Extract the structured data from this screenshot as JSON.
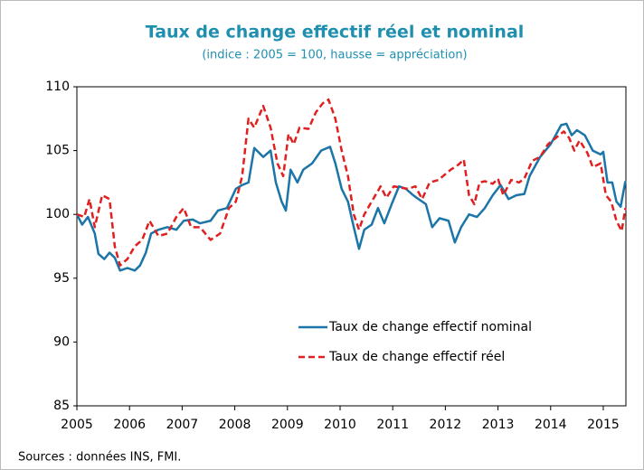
{
  "chart_data": {
    "type": "line",
    "title": "Taux de change effectif réel et nominal",
    "subtitle": "(indice : 2005 = 100, hausse = appréciation)",
    "source": "Sources : données INS, FMI.",
    "xlim": [
      2005,
      2015.43
    ],
    "xticks": [
      2005,
      2006,
      2007,
      2008,
      2009,
      2010,
      2011,
      2012,
      2013,
      2014,
      2015
    ],
    "ylim": [
      85,
      110
    ],
    "yticks": [
      85,
      90,
      95,
      100,
      105,
      110
    ],
    "grid": false,
    "legend": "bottom",
    "series": [
      {
        "name": "Taux de change effectif nominal",
        "color": "#1b75a8",
        "dash": false,
        "x": [
          2005.0,
          2005.1,
          2005.21,
          2005.34,
          2005.41,
          2005.52,
          2005.62,
          2005.72,
          2005.82,
          2005.96,
          2006.1,
          2006.2,
          2006.31,
          2006.41,
          2006.55,
          2006.72,
          2006.89,
          2007.03,
          2007.2,
          2007.34,
          2007.54,
          2007.68,
          2007.85,
          2008.02,
          2008.14,
          2008.26,
          2008.37,
          2008.54,
          2008.68,
          2008.78,
          2008.89,
          2008.97,
          2009.06,
          2009.19,
          2009.3,
          2009.47,
          2009.64,
          2009.81,
          2009.91,
          2010.03,
          2010.15,
          2010.26,
          2010.36,
          2010.46,
          2010.6,
          2010.72,
          2010.84,
          2010.98,
          2011.12,
          2011.25,
          2011.39,
          2011.49,
          2011.63,
          2011.75,
          2011.89,
          2012.06,
          2012.18,
          2012.3,
          2012.45,
          2012.6,
          2012.75,
          2012.9,
          2013.05,
          2013.2,
          2013.35,
          2013.5,
          2013.6,
          2013.8,
          2014.0,
          2014.2,
          2014.3,
          2014.4,
          2014.5,
          2014.65,
          2014.8,
          2014.95,
          2015.0,
          2015.08,
          2015.17,
          2015.25,
          2015.33,
          2015.42
        ],
        "values": [
          100,
          99.2,
          99.8,
          98.5,
          96.9,
          96.5,
          97,
          96.6,
          95.6,
          95.8,
          95.6,
          96,
          97,
          98.5,
          98.8,
          99,
          98.8,
          99.5,
          99.6,
          99.3,
          99.5,
          100.3,
          100.5,
          102,
          102.3,
          102.5,
          105.2,
          104.5,
          105,
          102.5,
          101,
          100.3,
          103.5,
          102.5,
          103.5,
          104,
          105,
          105.3,
          104,
          102,
          101,
          99,
          97.3,
          98.8,
          99.2,
          100.5,
          99.3,
          100.8,
          102.2,
          102,
          101.5,
          101.2,
          100.8,
          99,
          99.7,
          99.5,
          97.8,
          99,
          100,
          99.8,
          100.5,
          101.5,
          102.3,
          101.2,
          101.5,
          101.6,
          103,
          104.5,
          105.5,
          107,
          107.1,
          106.2,
          106.6,
          106.2,
          105,
          104.7,
          104.9,
          102.5,
          102.5,
          101,
          100.6,
          102.6
        ]
      },
      {
        "name": "Taux de change effectif réel",
        "color": "#e02020",
        "dash": true,
        "x": [
          2005.0,
          2005.14,
          2005.24,
          2005.34,
          2005.48,
          2005.62,
          2005.72,
          2005.82,
          2005.96,
          2006.1,
          2006.24,
          2006.38,
          2006.55,
          2006.72,
          2006.89,
          2007.03,
          2007.17,
          2007.34,
          2007.54,
          2007.72,
          2007.89,
          2008.02,
          2008.14,
          2008.26,
          2008.37,
          2008.54,
          2008.68,
          2008.81,
          2008.92,
          2009.02,
          2009.12,
          2009.23,
          2009.4,
          2009.54,
          2009.67,
          2009.78,
          2009.91,
          2010.03,
          2010.15,
          2010.26,
          2010.36,
          2010.46,
          2010.6,
          2010.77,
          2010.88,
          2011.02,
          2011.15,
          2011.29,
          2011.43,
          2011.56,
          2011.7,
          2011.87,
          2012.1,
          2012.25,
          2012.35,
          2012.45,
          2012.55,
          2012.65,
          2012.75,
          2012.9,
          2013.0,
          2013.1,
          2013.25,
          2013.4,
          2013.5,
          2013.65,
          2013.8,
          2013.95,
          2014.1,
          2014.25,
          2014.35,
          2014.45,
          2014.55,
          2014.7,
          2014.8,
          2014.95,
          2015.05,
          2015.15,
          2015.25,
          2015.35,
          2015.42
        ],
        "values": [
          100,
          99.8,
          101.2,
          99,
          101.5,
          101.2,
          97.5,
          96,
          96.5,
          97.5,
          98,
          99.5,
          98.3,
          98.5,
          99.8,
          100.5,
          99,
          99,
          98,
          98.5,
          100.5,
          101,
          103,
          107.5,
          106.8,
          108.5,
          106.8,
          104,
          103,
          106.3,
          105.5,
          106.8,
          106.7,
          108,
          108.7,
          109,
          107.5,
          105,
          103,
          100,
          98.8,
          100,
          101,
          102.2,
          101.3,
          102.2,
          102.1,
          102,
          102.2,
          101.2,
          102.5,
          102.7,
          103.5,
          103.9,
          104.3,
          101.5,
          100.8,
          102.5,
          102.6,
          102.4,
          102.8,
          101.5,
          102.7,
          102.5,
          102.8,
          104.2,
          104.5,
          105.5,
          106,
          106.5,
          106,
          105,
          105.8,
          104.8,
          103.7,
          104,
          101.5,
          101,
          99.5,
          98.7,
          100.5
        ]
      }
    ]
  }
}
